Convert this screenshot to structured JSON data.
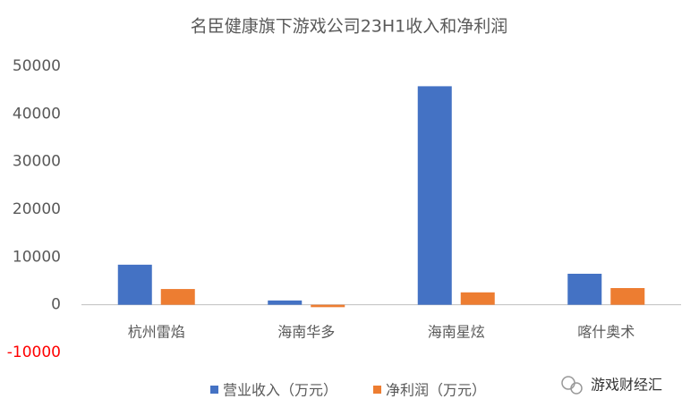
{
  "chart_data": {
    "type": "bar",
    "title": "名臣健康旗下游戏公司23H1收入和净利润",
    "categories": [
      "杭州雷焰",
      "海南华多",
      "海南星炫",
      "喀什奥术"
    ],
    "series": [
      {
        "name": "营业收入（万元）",
        "color": "#4472c4",
        "values": [
          8400,
          900,
          45800,
          6500
        ]
      },
      {
        "name": "净利润（万元）",
        "color": "#ed7d31",
        "values": [
          3300,
          -500,
          2600,
          3500
        ]
      }
    ],
    "ylim": [
      -10000,
      50000
    ],
    "yticks": [
      -10000,
      0,
      10000,
      20000,
      30000,
      40000,
      50000
    ],
    "negative_tick_color": "#ff0000",
    "grid": false,
    "legend": "bottom",
    "watermark": "游戏财经汇"
  }
}
